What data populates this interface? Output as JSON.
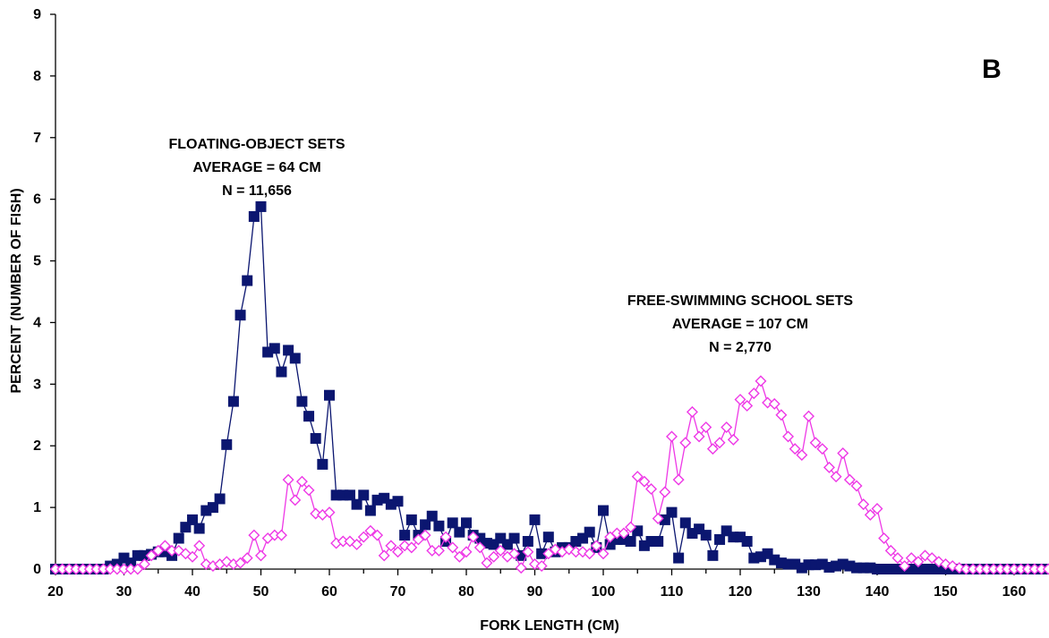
{
  "chart_data": {
    "type": "line",
    "panel_label": "B",
    "xlabel": "FORK LENGTH (CM)",
    "ylabel": "PERCENT (NUMBER OF FISH)",
    "xlim": [
      20,
      166
    ],
    "ylim": [
      0,
      9
    ],
    "x_ticks": [
      "20",
      "30",
      "40",
      "50",
      "60",
      "70",
      "80",
      "90",
      "100",
      "110",
      "120",
      "130",
      "140",
      "150",
      "160"
    ],
    "y_ticks": [
      "0",
      "1",
      "2",
      "3",
      "4",
      "5",
      "6",
      "7",
      "8",
      "9"
    ],
    "annotations": [
      {
        "series": "floating",
        "lines": [
          "FLOATING-OBJECT SETS",
          "AVERAGE = 64 CM",
          "N = 11,656"
        ]
      },
      {
        "series": "free",
        "lines": [
          "FREE-SWIMMING SCHOOL SETS",
          "AVERAGE = 107 CM",
          "N = 2,770"
        ]
      }
    ],
    "colors": {
      "floating": "#0b1670",
      "free": "#ee38e6"
    },
    "series": [
      {
        "id": "floating",
        "marker": "filled-square",
        "color": "#0b1670",
        "values": [
          [
            20,
            0
          ],
          [
            21,
            0
          ],
          [
            22,
            0
          ],
          [
            23,
            0
          ],
          [
            24,
            0
          ],
          [
            25,
            0
          ],
          [
            26,
            0
          ],
          [
            27,
            0
          ],
          [
            28,
            0.05
          ],
          [
            29,
            0.08
          ],
          [
            30,
            0.18
          ],
          [
            31,
            0.1
          ],
          [
            32,
            0.22
          ],
          [
            33,
            0.22
          ],
          [
            34,
            0.24
          ],
          [
            35,
            0.28
          ],
          [
            36,
            0.28
          ],
          [
            37,
            0.22
          ],
          [
            38,
            0.5
          ],
          [
            39,
            0.68
          ],
          [
            40,
            0.8
          ],
          [
            41,
            0.66
          ],
          [
            42,
            0.95
          ],
          [
            43,
            1.0
          ],
          [
            44,
            1.14
          ],
          [
            45,
            2.02
          ],
          [
            46,
            2.72
          ],
          [
            47,
            4.12
          ],
          [
            48,
            4.68
          ],
          [
            49,
            5.72
          ],
          [
            50,
            5.88
          ],
          [
            51,
            3.52
          ],
          [
            52,
            3.58
          ],
          [
            53,
            3.2
          ],
          [
            54,
            3.55
          ],
          [
            55,
            3.42
          ],
          [
            56,
            2.72
          ],
          [
            57,
            2.48
          ],
          [
            58,
            2.12
          ],
          [
            59,
            1.7
          ],
          [
            60,
            2.82
          ],
          [
            61,
            1.2
          ],
          [
            62,
            1.2
          ],
          [
            63,
            1.2
          ],
          [
            64,
            1.05
          ],
          [
            65,
            1.2
          ],
          [
            66,
            0.95
          ],
          [
            67,
            1.12
          ],
          [
            68,
            1.15
          ],
          [
            69,
            1.05
          ],
          [
            70,
            1.1
          ],
          [
            71,
            0.55
          ],
          [
            72,
            0.8
          ],
          [
            73,
            0.55
          ],
          [
            74,
            0.72
          ],
          [
            75,
            0.86
          ],
          [
            76,
            0.7
          ],
          [
            77,
            0.45
          ],
          [
            78,
            0.75
          ],
          [
            79,
            0.6
          ],
          [
            80,
            0.75
          ],
          [
            81,
            0.55
          ],
          [
            82,
            0.5
          ],
          [
            83,
            0.42
          ],
          [
            84,
            0.4
          ],
          [
            85,
            0.5
          ],
          [
            86,
            0.4
          ],
          [
            87,
            0.5
          ],
          [
            88,
            0.22
          ],
          [
            89,
            0.45
          ],
          [
            90,
            0.8
          ],
          [
            91,
            0.25
          ],
          [
            92,
            0.52
          ],
          [
            93,
            0.28
          ],
          [
            94,
            0.35
          ],
          [
            95,
            0.35
          ],
          [
            96,
            0.45
          ],
          [
            97,
            0.5
          ],
          [
            98,
            0.6
          ],
          [
            99,
            0.35
          ],
          [
            100,
            0.95
          ],
          [
            101,
            0.4
          ],
          [
            102,
            0.48
          ],
          [
            103,
            0.48
          ],
          [
            104,
            0.45
          ],
          [
            105,
            0.62
          ],
          [
            106,
            0.38
          ],
          [
            107,
            0.45
          ],
          [
            108,
            0.45
          ],
          [
            109,
            0.8
          ],
          [
            110,
            0.92
          ],
          [
            111,
            0.18
          ],
          [
            112,
            0.75
          ],
          [
            113,
            0.58
          ],
          [
            114,
            0.65
          ],
          [
            115,
            0.55
          ],
          [
            116,
            0.22
          ],
          [
            117,
            0.48
          ],
          [
            118,
            0.62
          ],
          [
            119,
            0.52
          ],
          [
            120,
            0.52
          ],
          [
            121,
            0.45
          ],
          [
            122,
            0.18
          ],
          [
            123,
            0.2
          ],
          [
            124,
            0.25
          ],
          [
            125,
            0.15
          ],
          [
            126,
            0.1
          ],
          [
            127,
            0.08
          ],
          [
            128,
            0.08
          ],
          [
            129,
            0.02
          ],
          [
            130,
            0.07
          ],
          [
            131,
            0.07
          ],
          [
            132,
            0.08
          ],
          [
            133,
            0.03
          ],
          [
            134,
            0.05
          ],
          [
            135,
            0.08
          ],
          [
            136,
            0.05
          ],
          [
            137,
            0.02
          ],
          [
            138,
            0.02
          ],
          [
            139,
            0.02
          ],
          [
            140,
            0
          ],
          [
            141,
            0
          ],
          [
            142,
            0
          ],
          [
            143,
            0
          ],
          [
            144,
            0
          ],
          [
            145,
            0
          ],
          [
            146,
            0
          ],
          [
            147,
            0
          ],
          [
            148,
            0
          ],
          [
            149,
            0
          ],
          [
            150,
            0
          ],
          [
            151,
            0
          ],
          [
            152,
            0
          ],
          [
            153,
            0
          ],
          [
            154,
            0
          ],
          [
            155,
            0
          ],
          [
            156,
            0
          ],
          [
            157,
            0
          ],
          [
            158,
            0
          ],
          [
            159,
            0
          ],
          [
            160,
            0
          ],
          [
            161,
            0
          ],
          [
            162,
            0
          ],
          [
            163,
            0
          ],
          [
            164,
            0
          ],
          [
            165,
            0
          ],
          [
            166,
            0
          ]
        ]
      },
      {
        "id": "free",
        "marker": "open-diamond",
        "color": "#ee38e6",
        "values": [
          [
            20,
            0
          ],
          [
            21,
            0
          ],
          [
            22,
            0
          ],
          [
            23,
            0
          ],
          [
            24,
            0
          ],
          [
            25,
            0
          ],
          [
            26,
            0
          ],
          [
            27,
            0
          ],
          [
            28,
            0
          ],
          [
            29,
            0
          ],
          [
            30,
            0
          ],
          [
            31,
            0
          ],
          [
            32,
            0
          ],
          [
            33,
            0.08
          ],
          [
            34,
            0.22
          ],
          [
            35,
            0.3
          ],
          [
            36,
            0.38
          ],
          [
            37,
            0.3
          ],
          [
            38,
            0.3
          ],
          [
            39,
            0.25
          ],
          [
            40,
            0.2
          ],
          [
            41,
            0.38
          ],
          [
            42,
            0.08
          ],
          [
            43,
            0.05
          ],
          [
            44,
            0.08
          ],
          [
            45,
            0.12
          ],
          [
            46,
            0.08
          ],
          [
            47,
            0.1
          ],
          [
            48,
            0.18
          ],
          [
            49,
            0.55
          ],
          [
            50,
            0.22
          ],
          [
            51,
            0.5
          ],
          [
            52,
            0.55
          ],
          [
            53,
            0.55
          ],
          [
            54,
            1.45
          ],
          [
            55,
            1.12
          ],
          [
            56,
            1.42
          ],
          [
            57,
            1.28
          ],
          [
            58,
            0.9
          ],
          [
            59,
            0.88
          ],
          [
            60,
            0.92
          ],
          [
            61,
            0.42
          ],
          [
            62,
            0.45
          ],
          [
            63,
            0.45
          ],
          [
            64,
            0.4
          ],
          [
            65,
            0.52
          ],
          [
            66,
            0.62
          ],
          [
            67,
            0.55
          ],
          [
            68,
            0.22
          ],
          [
            69,
            0.38
          ],
          [
            70,
            0.28
          ],
          [
            71,
            0.38
          ],
          [
            72,
            0.35
          ],
          [
            73,
            0.48
          ],
          [
            74,
            0.55
          ],
          [
            75,
            0.3
          ],
          [
            76,
            0.3
          ],
          [
            77,
            0.52
          ],
          [
            78,
            0.35
          ],
          [
            79,
            0.2
          ],
          [
            80,
            0.28
          ],
          [
            81,
            0.52
          ],
          [
            82,
            0.35
          ],
          [
            83,
            0.1
          ],
          [
            84,
            0.2
          ],
          [
            85,
            0.3
          ],
          [
            86,
            0.2
          ],
          [
            87,
            0.25
          ],
          [
            88,
            0.02
          ],
          [
            89,
            0.28
          ],
          [
            90,
            0.08
          ],
          [
            91,
            0.05
          ],
          [
            92,
            0.25
          ],
          [
            93,
            0.32
          ],
          [
            94,
            0.28
          ],
          [
            95,
            0.32
          ],
          [
            96,
            0.28
          ],
          [
            97,
            0.28
          ],
          [
            98,
            0.25
          ],
          [
            99,
            0.38
          ],
          [
            100,
            0.25
          ],
          [
            101,
            0.52
          ],
          [
            102,
            0.58
          ],
          [
            103,
            0.58
          ],
          [
            104,
            0.68
          ],
          [
            105,
            1.5
          ],
          [
            106,
            1.42
          ],
          [
            107,
            1.3
          ],
          [
            108,
            0.82
          ],
          [
            109,
            1.25
          ],
          [
            110,
            2.15
          ],
          [
            111,
            1.45
          ],
          [
            112,
            2.05
          ],
          [
            113,
            2.55
          ],
          [
            114,
            2.15
          ],
          [
            115,
            2.3
          ],
          [
            116,
            1.95
          ],
          [
            117,
            2.05
          ],
          [
            118,
            2.3
          ],
          [
            119,
            2.1
          ],
          [
            120,
            2.75
          ],
          [
            121,
            2.65
          ],
          [
            122,
            2.85
          ],
          [
            123,
            3.05
          ],
          [
            124,
            2.7
          ],
          [
            125,
            2.68
          ],
          [
            126,
            2.5
          ],
          [
            127,
            2.15
          ],
          [
            128,
            1.95
          ],
          [
            129,
            1.85
          ],
          [
            130,
            2.48
          ],
          [
            131,
            2.05
          ],
          [
            132,
            1.95
          ],
          [
            133,
            1.65
          ],
          [
            134,
            1.5
          ],
          [
            135,
            1.88
          ],
          [
            136,
            1.45
          ],
          [
            137,
            1.35
          ],
          [
            138,
            1.05
          ],
          [
            139,
            0.88
          ],
          [
            140,
            0.98
          ],
          [
            141,
            0.5
          ],
          [
            142,
            0.3
          ],
          [
            143,
            0.18
          ],
          [
            144,
            0.05
          ],
          [
            145,
            0.18
          ],
          [
            146,
            0.12
          ],
          [
            147,
            0.22
          ],
          [
            148,
            0.18
          ],
          [
            149,
            0.12
          ],
          [
            150,
            0.08
          ],
          [
            151,
            0.05
          ],
          [
            152,
            0.02
          ],
          [
            153,
            0
          ],
          [
            154,
            0
          ],
          [
            155,
            0
          ],
          [
            156,
            0
          ],
          [
            157,
            0
          ],
          [
            158,
            0
          ],
          [
            159,
            0
          ],
          [
            160,
            0
          ],
          [
            161,
            0
          ],
          [
            162,
            0
          ],
          [
            163,
            0
          ],
          [
            164,
            0
          ],
          [
            165,
            0
          ],
          [
            166,
            0
          ]
        ]
      }
    ]
  }
}
